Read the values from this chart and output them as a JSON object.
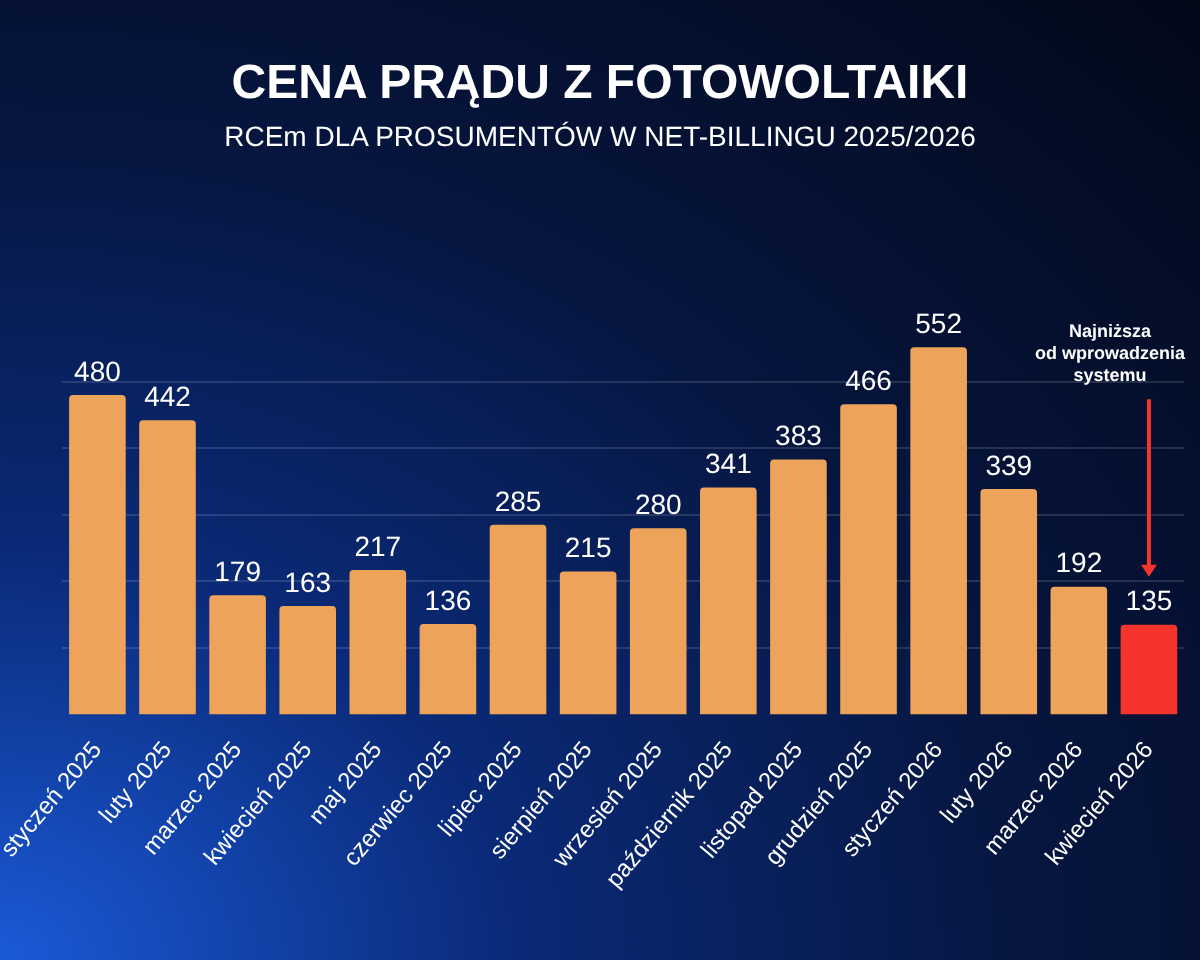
{
  "chart_data": {
    "type": "bar",
    "title": "CENA PRĄDU Z FOTOWOLTAIKI",
    "subtitle": "RCEm DLA PROSUMENTÓW W NET-BILLINGU 2025/2026",
    "categories": [
      "styczeń 2025",
      "luty 2025",
      "marzec 2025",
      "kwiecień 2025",
      "maj 2025",
      "czerwiec 2025",
      "lipiec 2025",
      "sierpień 2025",
      "wrzesień 2025",
      "październik 2025",
      "listopad 2025",
      "grudzień 2025",
      "styczeń 2026",
      "luty 2026",
      "marzec 2026",
      "kwiecień 2026"
    ],
    "values": [
      480,
      442,
      179,
      163,
      217,
      136,
      285,
      215,
      280,
      341,
      383,
      466,
      552,
      339,
      192,
      135
    ],
    "colors": [
      "#eea35b",
      "#eea35b",
      "#eea35b",
      "#eea35b",
      "#eea35b",
      "#eea35b",
      "#eea35b",
      "#eea35b",
      "#eea35b",
      "#eea35b",
      "#eea35b",
      "#eea35b",
      "#eea35b",
      "#eea35b",
      "#eea35b",
      "#f5342c"
    ],
    "yticks": [
      {
        "value": 100,
        "label": null
      },
      {
        "value": 200,
        "label": null
      },
      {
        "value": 300,
        "label": null
      },
      {
        "value": 400,
        "label": null
      },
      {
        "value": 500,
        "label": null
      }
    ],
    "tick_labels": "x",
    "grid": "y",
    "data_labels": true,
    "legend": false,
    "annotations": [
      "Najniższa od wprowadzenia systemu"
    ]
  }
}
